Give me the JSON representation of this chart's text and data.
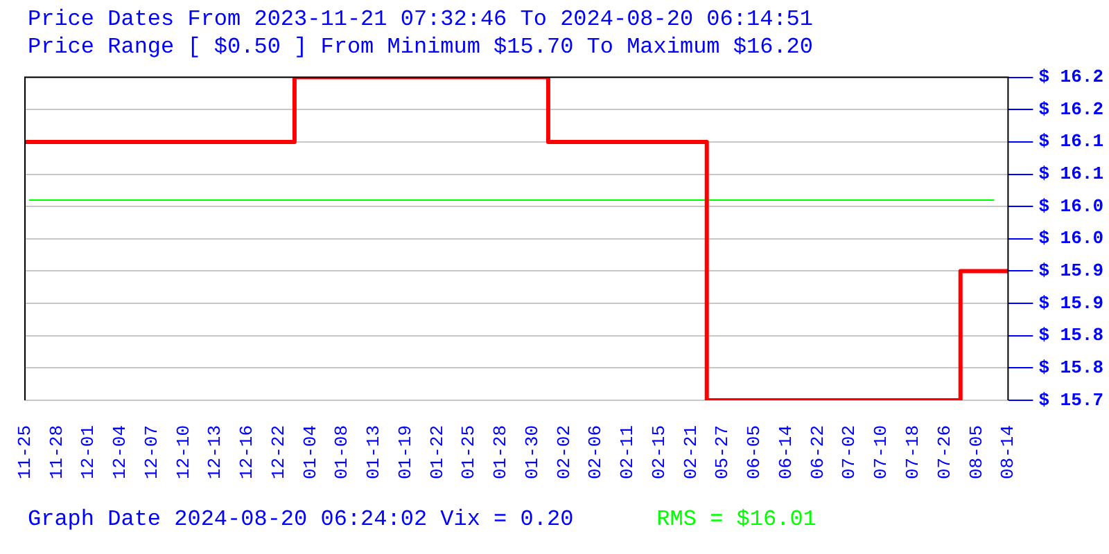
{
  "chart_data": {
    "type": "step",
    "title": "Price Dates From 2023-11-21 07:32:46 To 2024-08-20 06:14:51",
    "subtitle": "Price Range [ $0.50 ] From Minimum $15.70 To Maximum $16.20",
    "categories": [
      "11-25",
      "11-28",
      "12-01",
      "12-04",
      "12-07",
      "12-10",
      "12-13",
      "12-16",
      "12-22",
      "01-04",
      "01-08",
      "01-13",
      "01-19",
      "01-22",
      "01-25",
      "01-28",
      "01-30",
      "02-02",
      "02-06",
      "02-11",
      "02-15",
      "02-21",
      "05-27",
      "06-05",
      "06-14",
      "06-22",
      "07-02",
      "07-10",
      "07-18",
      "07-26",
      "08-05",
      "08-14"
    ],
    "series": [
      {
        "color": "#ff0000",
        "values": [
          16.1,
          16.1,
          16.1,
          16.1,
          16.1,
          16.1,
          16.1,
          16.1,
          16.1,
          16.2,
          16.2,
          16.2,
          16.2,
          16.2,
          16.2,
          16.2,
          16.2,
          16.1,
          16.1,
          16.1,
          16.1,
          16.1,
          15.7,
          15.7,
          15.7,
          15.7,
          15.7,
          15.7,
          15.7,
          15.7,
          15.9,
          15.9
        ]
      }
    ],
    "ylim": [
      15.7,
      16.2
    ],
    "yticks": [
      {
        "value": 16.2,
        "label": "$ 16.2"
      },
      {
        "value": 16.15,
        "label": "$ 16.2"
      },
      {
        "value": 16.1,
        "label": "$ 16.1"
      },
      {
        "value": 16.05,
        "label": "$ 16.1"
      },
      {
        "value": 16.0,
        "label": "$ 16.0"
      },
      {
        "value": 15.95,
        "label": "$ 16.0"
      },
      {
        "value": 15.9,
        "label": "$ 15.9"
      },
      {
        "value": 15.85,
        "label": "$ 15.9"
      },
      {
        "value": 15.8,
        "label": "$ 15.8"
      },
      {
        "value": 15.75,
        "label": "$ 15.8"
      },
      {
        "value": 15.7,
        "label": "$ 15.7"
      }
    ],
    "ref_lines": [
      {
        "axis": "y",
        "value": 16.01,
        "label": "RMS = $16.01",
        "color": "#00ff00"
      }
    ],
    "annotations": [
      "Graph Date 2024-08-20 06:24:02 Vix = 0.20"
    ],
    "grid": "y",
    "legend": false
  }
}
